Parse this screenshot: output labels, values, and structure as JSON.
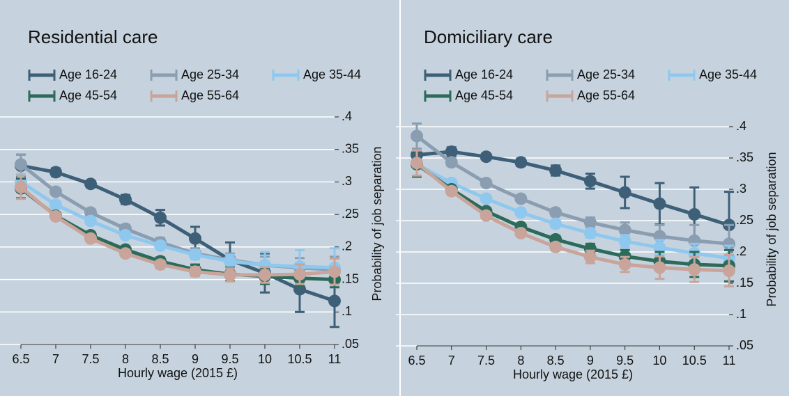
{
  "chart_data": [
    {
      "type": "line",
      "title": "Residential care",
      "xlabel": "Hourly wage (2015 £)",
      "ylabel": "Probability of job separation",
      "x": [
        6.5,
        7,
        7.5,
        8,
        8.5,
        9,
        9.5,
        10,
        10.5,
        11
      ],
      "xlim": [
        6.5,
        11
      ],
      "xticks": [
        6.5,
        7,
        7.5,
        8,
        8.5,
        9,
        9.5,
        10,
        10.5,
        11
      ],
      "ylim": [
        0.05,
        0.4
      ],
      "yticks": [
        {
          "value": 0.05,
          "label": ".05"
        },
        {
          "value": 0.1,
          "label": ".1"
        },
        {
          "value": 0.15,
          "label": ".15"
        },
        {
          "value": 0.2,
          "label": ".2"
        },
        {
          "value": 0.25,
          "label": ".25"
        },
        {
          "value": 0.3,
          "label": ".3"
        },
        {
          "value": 0.35,
          "label": ".35"
        },
        {
          "value": 0.4,
          "label": ".4"
        }
      ],
      "grid": true,
      "series": [
        {
          "name": "Age 16-24",
          "color": "#3e5f78",
          "values": [
            0.325,
            0.315,
            0.297,
            0.273,
            0.245,
            0.213,
            0.18,
            0.16,
            0.135,
            0.117
          ],
          "errors": [
            0.017,
            0.006,
            0.005,
            0.007,
            0.012,
            0.018,
            0.027,
            0.03,
            0.035,
            0.04
          ]
        },
        {
          "name": "Age 25-34",
          "color": "#8a9db1",
          "values": [
            0.327,
            0.285,
            0.253,
            0.228,
            0.207,
            0.19,
            0.18,
            0.172,
            0.168,
            0.165
          ],
          "errors": [
            0.015,
            0.005,
            0.005,
            0.006,
            0.007,
            0.008,
            0.01,
            0.013,
            0.015,
            0.02
          ]
        },
        {
          "name": "Age 35-44",
          "color": "#8fc8ee",
          "values": [
            0.3,
            0.265,
            0.24,
            0.218,
            0.202,
            0.188,
            0.178,
            0.172,
            0.17,
            0.168
          ],
          "errors": [
            0.012,
            0.005,
            0.004,
            0.005,
            0.006,
            0.007,
            0.01,
            0.02,
            0.025,
            0.03
          ]
        },
        {
          "name": "Age 45-54",
          "color": "#2c6a5a",
          "values": [
            0.29,
            0.248,
            0.218,
            0.196,
            0.178,
            0.165,
            0.158,
            0.155,
            0.152,
            0.15
          ],
          "errors": [
            0.015,
            0.005,
            0.004,
            0.005,
            0.006,
            0.008,
            0.01,
            0.012,
            0.012,
            0.012
          ]
        },
        {
          "name": "Age 55-64",
          "color": "#c8a49a",
          "values": [
            0.292,
            0.247,
            0.213,
            0.19,
            0.173,
            0.162,
            0.157,
            0.157,
            0.158,
            0.162
          ],
          "errors": [
            0.018,
            0.005,
            0.004,
            0.005,
            0.006,
            0.007,
            0.01,
            0.012,
            0.015,
            0.02
          ]
        }
      ]
    },
    {
      "type": "line",
      "title": "Domiciliary care",
      "xlabel": "Hourly wage (2015 £)",
      "ylabel": "Probability of job separation",
      "x": [
        6.5,
        7,
        7.5,
        8,
        8.5,
        9,
        9.5,
        10,
        10.5,
        11
      ],
      "xlim": [
        6.5,
        11
      ],
      "xticks": [
        6.5,
        7,
        7.5,
        8,
        8.5,
        9,
        9.5,
        10,
        10.5,
        11
      ],
      "ylim": [
        0.05,
        0.4
      ],
      "yticks": [
        {
          "value": 0.05,
          "label": ".05"
        },
        {
          "value": 0.1,
          "label": ".1"
        },
        {
          "value": 0.15,
          "label": ".15"
        },
        {
          "value": 0.2,
          "label": ".2"
        },
        {
          "value": 0.25,
          "label": ".25"
        },
        {
          "value": 0.3,
          "label": ".3"
        },
        {
          "value": 0.35,
          "label": ".35"
        },
        {
          "value": 0.4,
          "label": ".4"
        }
      ],
      "grid": true,
      "series": [
        {
          "name": "Age 16-24",
          "color": "#3e5f78",
          "values": [
            0.355,
            0.36,
            0.352,
            0.343,
            0.33,
            0.313,
            0.295,
            0.277,
            0.26,
            0.243
          ],
          "errors": [
            0.01,
            0.007,
            0.005,
            0.006,
            0.008,
            0.012,
            0.025,
            0.033,
            0.043,
            0.053
          ]
        },
        {
          "name": "Age 25-34",
          "color": "#8a9db1",
          "values": [
            0.385,
            0.343,
            0.31,
            0.285,
            0.263,
            0.247,
            0.235,
            0.225,
            0.218,
            0.213
          ],
          "errors": [
            0.02,
            0.006,
            0.005,
            0.005,
            0.006,
            0.008,
            0.012,
            0.018,
            0.025,
            0.03
          ]
        },
        {
          "name": "Age 35-44",
          "color": "#8fc8ee",
          "values": [
            0.34,
            0.31,
            0.285,
            0.263,
            0.245,
            0.23,
            0.217,
            0.207,
            0.198,
            0.19
          ],
          "errors": [
            0.02,
            0.005,
            0.004,
            0.005,
            0.006,
            0.007,
            0.01,
            0.012,
            0.015,
            0.02
          ]
        },
        {
          "name": "Age 45-54",
          "color": "#2c6a5a",
          "values": [
            0.34,
            0.3,
            0.265,
            0.24,
            0.22,
            0.205,
            0.193,
            0.185,
            0.18,
            0.178
          ],
          "errors": [
            0.02,
            0.005,
            0.004,
            0.005,
            0.006,
            0.008,
            0.01,
            0.015,
            0.02,
            0.025
          ]
        },
        {
          "name": "Age 55-64",
          "color": "#c8a49a",
          "values": [
            0.342,
            0.297,
            0.258,
            0.23,
            0.208,
            0.192,
            0.18,
            0.175,
            0.172,
            0.17
          ],
          "errors": [
            0.02,
            0.006,
            0.005,
            0.005,
            0.006,
            0.01,
            0.012,
            0.018,
            0.02,
            0.025
          ]
        }
      ]
    }
  ]
}
